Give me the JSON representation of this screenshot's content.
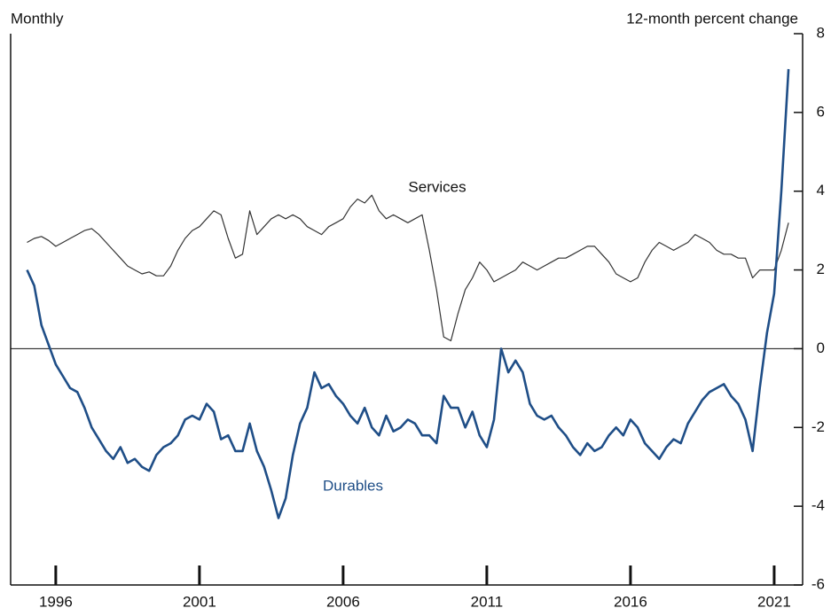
{
  "chart_data": {
    "type": "line",
    "y_label_left": "Monthly",
    "y_label_right": "12-month percent change",
    "x": [
      1995,
      1995.25,
      1995.5,
      1995.75,
      1996,
      1996.25,
      1996.5,
      1996.75,
      1997,
      1997.25,
      1997.5,
      1997.75,
      1998,
      1998.25,
      1998.5,
      1998.75,
      1999,
      1999.25,
      1999.5,
      1999.75,
      2000,
      2000.25,
      2000.5,
      2000.75,
      2001,
      2001.25,
      2001.5,
      2001.75,
      2002,
      2002.25,
      2002.5,
      2002.75,
      2003,
      2003.25,
      2003.5,
      2003.75,
      2004,
      2004.25,
      2004.5,
      2004.75,
      2005,
      2005.25,
      2005.5,
      2005.75,
      2006,
      2006.25,
      2006.5,
      2006.75,
      2007,
      2007.25,
      2007.5,
      2007.75,
      2008,
      2008.25,
      2008.5,
      2008.75,
      2009,
      2009.25,
      2009.5,
      2009.75,
      2010,
      2010.25,
      2010.5,
      2010.75,
      2011,
      2011.25,
      2011.5,
      2011.75,
      2012,
      2012.25,
      2012.5,
      2012.75,
      2013,
      2013.25,
      2013.5,
      2013.75,
      2014,
      2014.25,
      2014.5,
      2014.75,
      2015,
      2015.25,
      2015.5,
      2015.75,
      2016,
      2016.25,
      2016.5,
      2016.75,
      2017,
      2017.25,
      2017.5,
      2017.75,
      2018,
      2018.25,
      2018.5,
      2018.75,
      2019,
      2019.25,
      2019.5,
      2019.75,
      2020,
      2020.25,
      2020.5,
      2020.75,
      2021,
      2021.25,
      2021.5
    ],
    "series": [
      {
        "name": "Services",
        "color": "#333333",
        "width": 1.2,
        "values": [
          2.7,
          2.8,
          2.85,
          2.75,
          2.6,
          2.7,
          2.8,
          2.9,
          3.0,
          3.05,
          2.9,
          2.7,
          2.5,
          2.3,
          2.1,
          2.0,
          1.9,
          1.95,
          1.85,
          1.85,
          2.1,
          2.5,
          2.8,
          3.0,
          3.1,
          3.3,
          3.5,
          3.4,
          2.8,
          2.3,
          2.4,
          3.5,
          2.9,
          3.1,
          3.3,
          3.4,
          3.3,
          3.4,
          3.3,
          3.1,
          3.0,
          2.9,
          3.1,
          3.2,
          3.3,
          3.6,
          3.8,
          3.7,
          3.9,
          3.5,
          3.3,
          3.4,
          3.3,
          3.2,
          3.3,
          3.4,
          2.5,
          1.5,
          0.3,
          0.2,
          0.9,
          1.5,
          1.8,
          2.2,
          2.0,
          1.7,
          1.8,
          1.9,
          2.0,
          2.2,
          2.1,
          2.0,
          2.1,
          2.2,
          2.3,
          2.3,
          2.4,
          2.5,
          2.6,
          2.6,
          2.4,
          2.2,
          1.9,
          1.8,
          1.7,
          1.8,
          2.2,
          2.5,
          2.7,
          2.6,
          2.5,
          2.6,
          2.7,
          2.9,
          2.8,
          2.7,
          2.5,
          2.4,
          2.4,
          2.3,
          2.3,
          1.8,
          2.0,
          2.0,
          2.0,
          2.5,
          3.2
        ]
      },
      {
        "name": "Durables",
        "color": "#1f4e87",
        "width": 2.6,
        "values": [
          2.0,
          1.6,
          0.6,
          0.1,
          -0.4,
          -0.7,
          -1.0,
          -1.1,
          -1.5,
          -2.0,
          -2.3,
          -2.6,
          -2.8,
          -2.5,
          -2.9,
          -2.8,
          -3.0,
          -3.1,
          -2.7,
          -2.5,
          -2.4,
          -2.2,
          -1.8,
          -1.7,
          -1.8,
          -1.4,
          -1.6,
          -2.3,
          -2.2,
          -2.6,
          -2.6,
          -1.9,
          -2.6,
          -3.0,
          -3.6,
          -4.3,
          -3.8,
          -2.7,
          -1.9,
          -1.5,
          -0.6,
          -1.0,
          -0.9,
          -1.2,
          -1.4,
          -1.7,
          -1.9,
          -1.5,
          -2.0,
          -2.2,
          -1.7,
          -2.1,
          -2.0,
          -1.8,
          -1.9,
          -2.2,
          -2.2,
          -2.4,
          -1.2,
          -1.5,
          -1.5,
          -2.0,
          -1.6,
          -2.2,
          -2.5,
          -1.8,
          0.0,
          -0.6,
          -0.3,
          -0.6,
          -1.4,
          -1.7,
          -1.8,
          -1.7,
          -2.0,
          -2.2,
          -2.5,
          -2.7,
          -2.4,
          -2.6,
          -2.5,
          -2.2,
          -2.0,
          -2.2,
          -1.8,
          -2.0,
          -2.4,
          -2.6,
          -2.8,
          -2.5,
          -2.3,
          -2.4,
          -1.9,
          -1.6,
          -1.3,
          -1.1,
          -1.0,
          -0.9,
          -1.2,
          -1.4,
          -1.8,
          -2.6,
          -1.0,
          0.4,
          1.4,
          4.0,
          7.1
        ]
      }
    ],
    "xlim": [
      1994.43,
      2021.99
    ],
    "xticks": [
      1996,
      2001,
      2006,
      2011,
      2016,
      2021
    ],
    "ylim": [
      -6,
      8
    ],
    "yticks": [
      -6,
      -4,
      -2,
      0,
      2,
      4,
      6,
      8
    ],
    "zero_line": true
  }
}
